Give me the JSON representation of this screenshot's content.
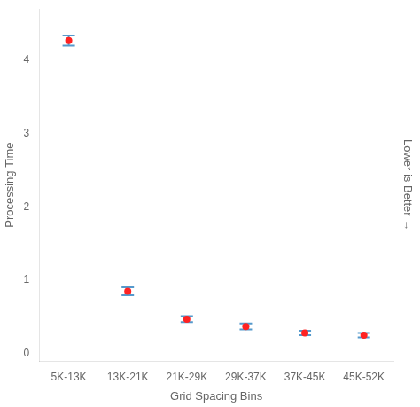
{
  "chart_data": {
    "type": "errorbar",
    "categories": [
      "5K-13K",
      "13K-21K",
      "21K-29K",
      "29K-37K",
      "37K-45K",
      "45K-52K"
    ],
    "values": [
      4.27,
      0.85,
      0.47,
      0.37,
      0.28,
      0.25
    ],
    "error_bars": {
      "low": [
        0.07,
        0.055,
        0.04,
        0.04,
        0.03,
        0.03
      ],
      "high": [
        0.07,
        0.055,
        0.04,
        0.04,
        0.03,
        0.03
      ],
      "color": "#5599cc"
    },
    "color": "#ff2222",
    "xlabel": "Grid Spacing Bins",
    "ylabel": "Processing Time",
    "annotations": [
      "Lower is Better →"
    ],
    "ylim": [
      -0.1,
      4.7
    ],
    "yticks": [
      0,
      1,
      2,
      3,
      4
    ],
    "grid": false
  }
}
